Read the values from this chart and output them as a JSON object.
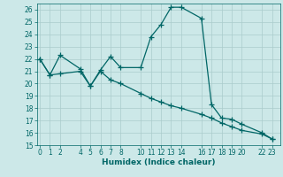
{
  "xlabel": "Humidex (Indice chaleur)",
  "bg_color": "#cce8e8",
  "line_color": "#006666",
  "grid_color": "#aacccc",
  "x_ticks": [
    0,
    1,
    2,
    4,
    5,
    6,
    7,
    8,
    10,
    11,
    12,
    13,
    14,
    16,
    17,
    18,
    19,
    20,
    22,
    23
  ],
  "xlim": [
    -0.3,
    23.8
  ],
  "ylim": [
    15,
    26.5
  ],
  "yticks": [
    15,
    16,
    17,
    18,
    19,
    20,
    21,
    22,
    23,
    24,
    25,
    26
  ],
  "series1_x": [
    0,
    1,
    2,
    4,
    5,
    6,
    7,
    8,
    10,
    11,
    12,
    13,
    14,
    16,
    17,
    18,
    19,
    20,
    22,
    23
  ],
  "series1_y": [
    22.0,
    20.7,
    22.3,
    21.2,
    19.8,
    21.1,
    22.2,
    21.3,
    21.3,
    23.8,
    24.8,
    26.2,
    26.2,
    25.3,
    18.3,
    17.2,
    17.1,
    16.7,
    16.0,
    15.5
  ],
  "series2_x": [
    0,
    1,
    2,
    4,
    5,
    6,
    7,
    8,
    10,
    11,
    12,
    13,
    14,
    16,
    17,
    18,
    19,
    20,
    22,
    23
  ],
  "series2_y": [
    22.0,
    20.7,
    20.8,
    21.0,
    19.8,
    21.0,
    20.3,
    20.0,
    19.2,
    18.8,
    18.5,
    18.2,
    18.0,
    17.5,
    17.2,
    16.8,
    16.5,
    16.2,
    15.9,
    15.5
  ],
  "marker": "+",
  "marker_size": 4,
  "linewidth": 0.9,
  "tick_fontsize": 5.5,
  "label_fontsize": 6.5
}
